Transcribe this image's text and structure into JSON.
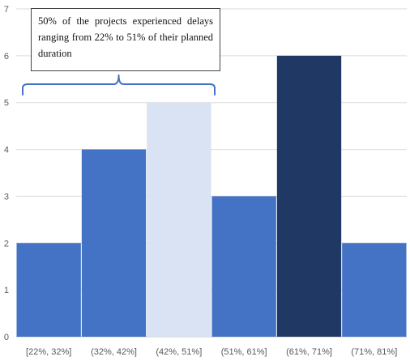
{
  "chart_data": {
    "type": "bar",
    "title": "",
    "xlabel": "",
    "ylabel": "",
    "ylim": [
      0,
      7
    ],
    "yticks": [
      0,
      1,
      2,
      3,
      4,
      5,
      6,
      7
    ],
    "grid": true,
    "categories": [
      "[22%, 32%]",
      "(32%, 42%]",
      "(42%, 51%]",
      "(51%, 61%]",
      "(61%, 71%]",
      "(71%, 81%]"
    ],
    "values": [
      2,
      4,
      5,
      3,
      6,
      2
    ],
    "colors": [
      "#4472C4",
      "#4472C4",
      "#DAE3F3",
      "#4472C4",
      "#203864",
      "#4472C4"
    ],
    "annotation": {
      "text": "50% of the projects experienced delays ranging from 22% to 51% of their planned duration",
      "spans_categories": [
        "[22%, 32%]",
        "(42%, 51%]"
      ]
    }
  },
  "colors": {
    "bar": "#4472C4",
    "bar_light": "#DAE3F3",
    "bar_dark": "#203864",
    "gridline": "#D9D9D9",
    "axis": "#BFBFBF",
    "brace": "#4472C4"
  }
}
